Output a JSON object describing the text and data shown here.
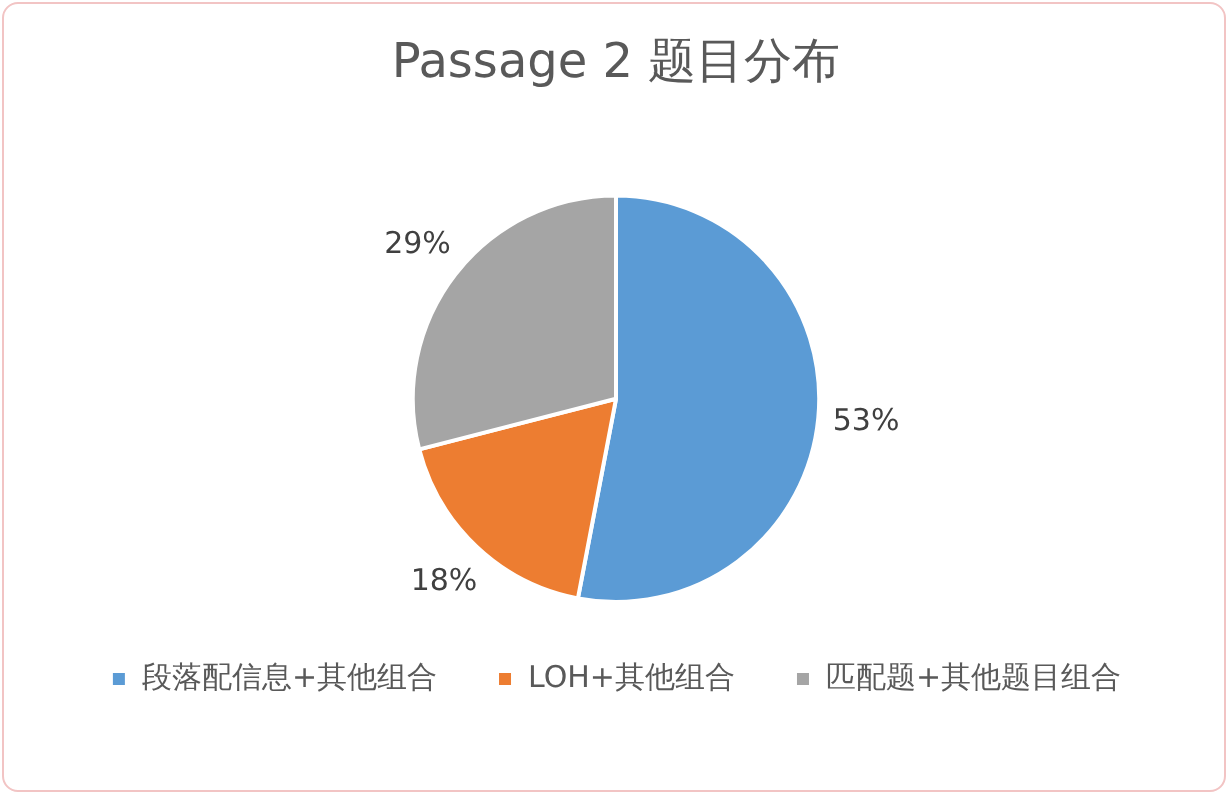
{
  "chart_data": {
    "type": "pie",
    "title": "Passage 2 题目分布",
    "categories": [
      "段落配信息+其他组合",
      "LOH+其他组合",
      "匹配题+其他题目组合"
    ],
    "values": [
      53,
      18,
      29
    ],
    "colors": [
      "#5b9bd5",
      "#ed7d31",
      "#a5a5a5"
    ],
    "value_labels": [
      "53%",
      "18%",
      "29%"
    ],
    "legend": "bottom"
  }
}
